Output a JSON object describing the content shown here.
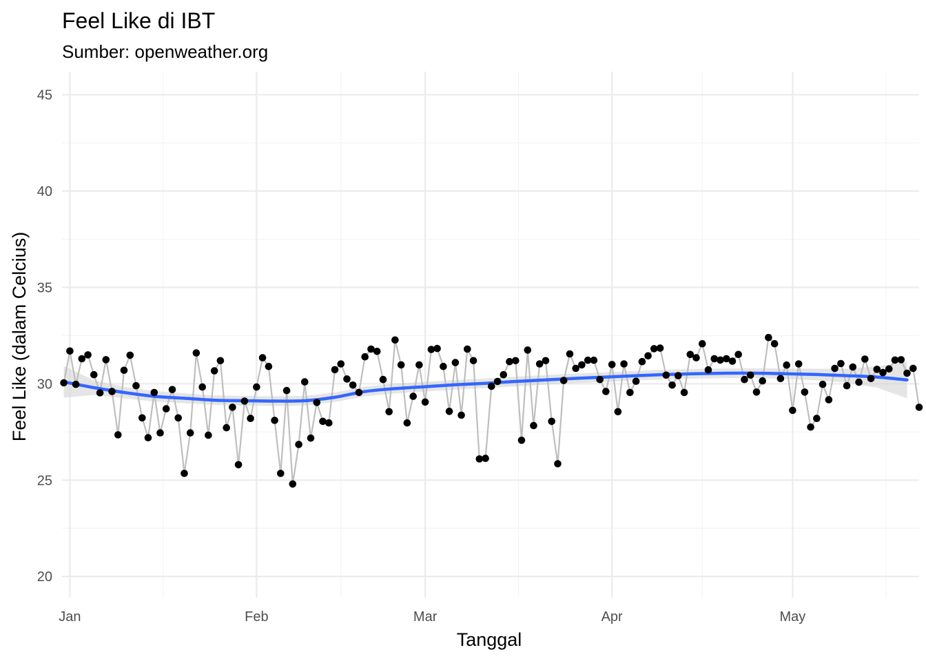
{
  "chart_data": {
    "type": "line",
    "title": "Feel Like di IBT",
    "subtitle": "Sumber: openweather.org",
    "xlabel": "Tanggal",
    "ylabel": "Feel Like (dalam Celcius)",
    "x_start_date": "2021-12-31",
    "x_range_days": [
      -0.3,
      142
    ],
    "ylim": [
      18.9,
      46.2
    ],
    "y_ticks": [
      20,
      25,
      30,
      35,
      40,
      45
    ],
    "x_ticks": [
      {
        "day": 1,
        "label": "Jan"
      },
      {
        "day": 32,
        "label": "Feb"
      },
      {
        "day": 60,
        "label": "Mar"
      },
      {
        "day": 91,
        "label": "Apr"
      },
      {
        "day": 121,
        "label": "May"
      }
    ],
    "x_minor_days": [
      16.5,
      46,
      75.5,
      106,
      136.5
    ],
    "series": [
      {
        "name": "Feel Like",
        "style": "points+line",
        "values": [
          30.05,
          31.7,
          29.97,
          31.3,
          31.5,
          30.47,
          29.53,
          31.25,
          29.6,
          27.35,
          30.7,
          31.48,
          29.9,
          28.23,
          27.2,
          29.55,
          27.45,
          28.7,
          29.7,
          28.23,
          25.35,
          27.45,
          31.6,
          29.83,
          27.33,
          30.67,
          31.2,
          27.72,
          28.78,
          25.8,
          29.1,
          28.2,
          29.83,
          31.35,
          30.9,
          28.1,
          25.35,
          29.65,
          24.8,
          26.85,
          30.1,
          27.18,
          29.03,
          28.05,
          27.97,
          30.73,
          31.03,
          30.25,
          29.93,
          29.55,
          31.4,
          31.8,
          31.68,
          30.22,
          28.55,
          32.27,
          30.98,
          27.97,
          29.35,
          30.98,
          29.05,
          31.78,
          31.83,
          30.9,
          28.57,
          31.1,
          28.37,
          31.8,
          31.2,
          26.1,
          26.13,
          29.87,
          30.12,
          30.47,
          31.15,
          31.2,
          27.07,
          31.75,
          27.83,
          31.03,
          31.2,
          28.05,
          25.85,
          30.17,
          31.55,
          30.8,
          30.98,
          31.22,
          31.22,
          30.22,
          29.6,
          31.0,
          28.55,
          31.03,
          29.55,
          30.13,
          31.15,
          31.45,
          31.82,
          31.85,
          30.45,
          29.93,
          30.42,
          29.55,
          31.52,
          31.35,
          32.08,
          30.72,
          31.3,
          31.23,
          31.3,
          31.17,
          31.52,
          30.22,
          30.45,
          29.57,
          30.15,
          32.4,
          32.08,
          30.27,
          30.97,
          28.62,
          31.03,
          29.57,
          27.75,
          28.2,
          29.97,
          29.17,
          30.8,
          31.05,
          29.9,
          30.87,
          30.08,
          31.28,
          30.27,
          30.75,
          30.58,
          30.77,
          31.23,
          31.25,
          30.55,
          30.8,
          28.78
        ]
      },
      {
        "name": "Smooth trend",
        "style": "loess",
        "color": "#3366ff",
        "band_color": "#d3d3d3",
        "days": [
          0,
          5,
          10,
          15,
          20,
          25,
          30,
          35,
          40,
          45,
          50,
          55,
          60,
          65,
          70,
          75,
          80,
          85,
          90,
          95,
          100,
          105,
          110,
          115,
          120,
          125,
          130,
          135,
          140
        ],
        "fit": [
          30.1,
          29.8,
          29.55,
          29.35,
          29.25,
          29.15,
          29.12,
          29.1,
          29.12,
          29.3,
          29.6,
          29.75,
          29.85,
          29.95,
          30.02,
          30.12,
          30.2,
          30.28,
          30.35,
          30.42,
          30.48,
          30.52,
          30.55,
          30.55,
          30.52,
          30.48,
          30.42,
          30.35,
          30.2
        ],
        "se": [
          0.82,
          0.38,
          0.3,
          0.27,
          0.26,
          0.25,
          0.25,
          0.25,
          0.25,
          0.25,
          0.25,
          0.25,
          0.25,
          0.25,
          0.25,
          0.25,
          0.25,
          0.25,
          0.25,
          0.25,
          0.25,
          0.25,
          0.25,
          0.25,
          0.27,
          0.3,
          0.36,
          0.55,
          0.95
        ]
      }
    ],
    "colors": {
      "points": "#000000",
      "connector": "#bebebe",
      "grid_major": "#ebebeb",
      "grid_minor": "#f4f4f4"
    }
  }
}
